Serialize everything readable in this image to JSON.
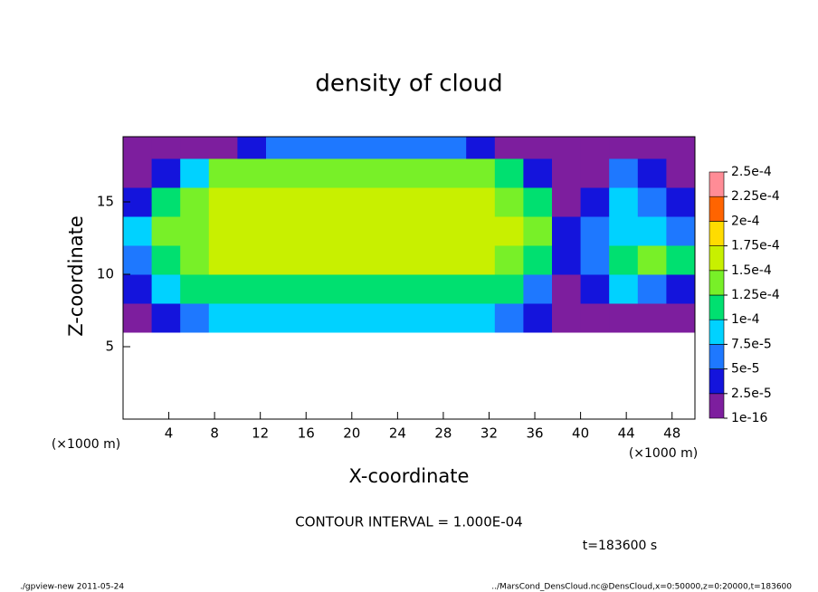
{
  "chart_data": {
    "type": "heatmap",
    "title": "density of cloud",
    "xlabel": "X-coordinate",
    "ylabel": "Z-coordinate",
    "x_unit": "(×1000 m)",
    "y_unit": "(×1000 m)",
    "xlim": [
      0,
      50
    ],
    "ylim": [
      0,
      19.5
    ],
    "xticks": [
      4,
      8,
      12,
      16,
      20,
      24,
      28,
      32,
      36,
      40,
      44,
      48
    ],
    "yticks": [
      5,
      10,
      15
    ],
    "x_edges": [
      0,
      2.5,
      5,
      7.5,
      10,
      12.5,
      15,
      17.5,
      20,
      22.5,
      25,
      27.5,
      30,
      32.5,
      35,
      37.5,
      40,
      42.5,
      45,
      47.5,
      50
    ],
    "y_edges": [
      0,
      2,
      4,
      6,
      8,
      10,
      12,
      14,
      16,
      18,
      20
    ],
    "values": [
      [
        null,
        null,
        null,
        null,
        null,
        null,
        null,
        null,
        null,
        null,
        null,
        null,
        null,
        null,
        null,
        null,
        null,
        null,
        null,
        null
      ],
      [
        null,
        null,
        null,
        null,
        null,
        null,
        null,
        null,
        null,
        null,
        null,
        null,
        null,
        null,
        null,
        null,
        null,
        null,
        null,
        null
      ],
      [
        null,
        null,
        null,
        null,
        null,
        null,
        null,
        null,
        null,
        null,
        null,
        null,
        null,
        null,
        null,
        null,
        null,
        null,
        null,
        null
      ],
      [
        1e-05,
        3e-05,
        6e-05,
        8e-05,
        8e-05,
        8e-05,
        8e-05,
        8e-05,
        8e-05,
        8e-05,
        8e-05,
        8e-05,
        8e-05,
        6e-05,
        3e-05,
        1e-05,
        1e-05,
        2e-05,
        1e-05,
        1e-05
      ],
      [
        4e-05,
        8e-05,
        0.00011,
        0.00011,
        0.00011,
        0.00011,
        0.00011,
        0.00011,
        0.00011,
        0.00011,
        0.00011,
        0.00011,
        0.00011,
        0.00011,
        6e-05,
        2e-05,
        4e-05,
        9e-05,
        6e-05,
        4e-05
      ],
      [
        6e-05,
        0.00012,
        0.00014,
        0.00015,
        0.00015,
        0.000155,
        0.000155,
        0.000155,
        0.000155,
        0.000155,
        0.000155,
        0.00015,
        0.00015,
        0.00014,
        0.00011,
        3e-05,
        7e-05,
        0.00011,
        0.00013,
        0.00012
      ],
      [
        8e-05,
        0.00013,
        0.000145,
        0.000155,
        0.000155,
        0.000155,
        0.000155,
        0.000155,
        0.000155,
        0.000155,
        0.000155,
        0.000155,
        0.000155,
        0.00015,
        0.00013,
        3e-05,
        6e-05,
        9e-05,
        8e-05,
        5e-05
      ],
      [
        4e-05,
        0.0001,
        0.00014,
        0.00015,
        0.00015,
        0.00015,
        0.00015,
        0.00015,
        0.00015,
        0.00015,
        0.00015,
        0.00015,
        0.00015,
        0.000145,
        0.00012,
        2e-05,
        3e-05,
        8e-05,
        6e-05,
        4e-05
      ],
      [
        2e-05,
        3e-05,
        9e-05,
        0.000125,
        0.00014,
        0.00014,
        0.00014,
        0.00014,
        0.00014,
        0.00014,
        0.00014,
        0.00014,
        0.00013,
        0.00011,
        4e-05,
        1e-05,
        2e-05,
        5e-05,
        4e-05,
        2e-05
      ],
      [
        1e-05,
        1e-05,
        1e-05,
        2e-05,
        4e-05,
        7e-05,
        7e-05,
        7e-05,
        7e-05,
        7e-05,
        7e-05,
        5e-05,
        3e-05,
        1e-05,
        1e-05,
        1e-05,
        1e-05,
        1e-05,
        1e-05,
        1e-05
      ]
    ],
    "colorbar": {
      "ticks": [
        1e-16,
        {
          "value": 2.5e-05,
          "label": "2.5e-5"
        },
        {
          "value": 5e-05,
          "label": "5e-5"
        },
        {
          "value": 7.5e-05,
          "label": "7.5e-5"
        },
        {
          "value": 0.0001,
          "label": "1e-4"
        },
        {
          "value": 0.000125,
          "label": "1.25e-4"
        },
        {
          "value": 0.00015,
          "label": "1.5e-4"
        },
        {
          "value": 0.000175,
          "label": "1.75e-4"
        },
        {
          "value": 0.0002,
          "label": "2e-4"
        },
        {
          "value": 0.000225,
          "label": "2.25e-4"
        },
        {
          "value": 0.00025,
          "label": "2.5e-4"
        }
      ],
      "colors": [
        "#7d1e9e",
        "#1414dc",
        "#1e78ff",
        "#00d2ff",
        "#00e070",
        "#78f028",
        "#c8f000",
        "#ffdc00",
        "#ff6400",
        "#ff8c96"
      ]
    },
    "contour_interval": "CONTOUR INTERVAL = 1.000E-04",
    "time_label": "t=183600 s",
    "footer_left": "./gpview-new   2011-05-24",
    "footer_right": "../MarsCond_DensCloud.nc@DensCloud,x=0:50000,z=0:20000,t=183600"
  }
}
